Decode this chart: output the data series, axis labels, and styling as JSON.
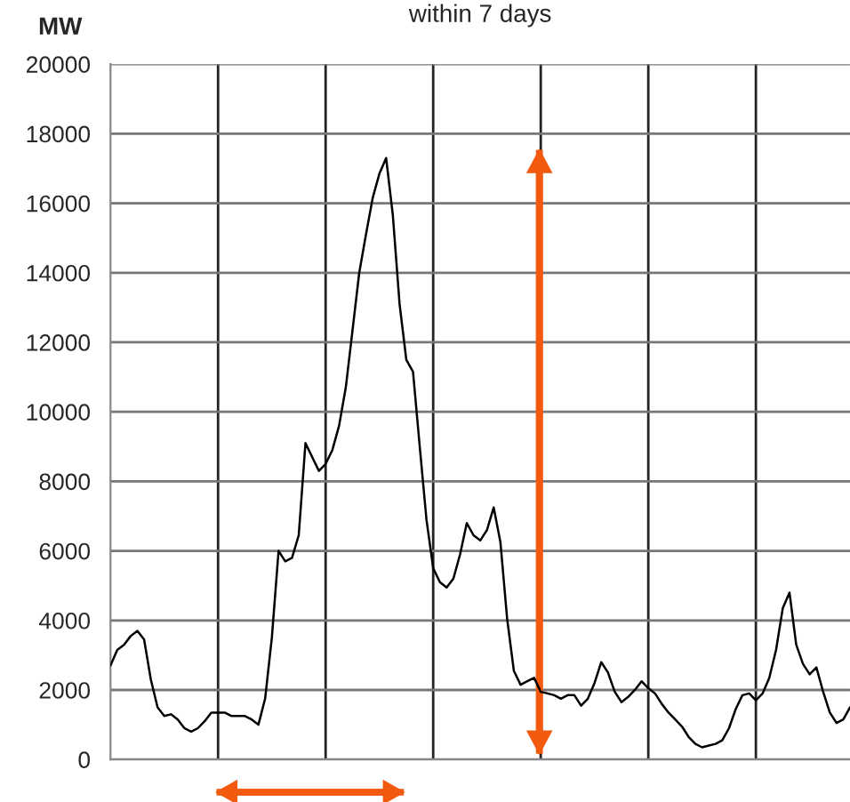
{
  "chart_data": {
    "type": "line",
    "title": "within 7 days",
    "ylabel": "MW",
    "categories": [
      null,
      null,
      null,
      null,
      null,
      null,
      null,
      null,
      null,
      null,
      null,
      null,
      null,
      null,
      null,
      null,
      null,
      null,
      null,
      null,
      null,
      null,
      null,
      null,
      null,
      null,
      null,
      null,
      null,
      null,
      null,
      null,
      null,
      null,
      null,
      null,
      null,
      null,
      null,
      null,
      null,
      null,
      null,
      null,
      null,
      null,
      null,
      null,
      null,
      null,
      null,
      null,
      null,
      null,
      null,
      null,
      null,
      null,
      null,
      null,
      null,
      null,
      null,
      null,
      null,
      null,
      null,
      null,
      null,
      null,
      null,
      null,
      null,
      null,
      null,
      null,
      null,
      null,
      null,
      null,
      null,
      null,
      null,
      null,
      null,
      null,
      null,
      null,
      null,
      null,
      null,
      null,
      null,
      null,
      null,
      null,
      null,
      null,
      null,
      null,
      null,
      null,
      null,
      null,
      null,
      null,
      null,
      null,
      null,
      null,
      null
    ],
    "series": [
      {
        "color": "#000000",
        "values": [
          2700,
          3150,
          3300,
          3550,
          3700,
          3450,
          2300,
          1500,
          1250,
          1300,
          1150,
          900,
          800,
          900,
          1100,
          1350,
          1350,
          1350,
          1250,
          1250,
          1250,
          1150,
          1000,
          1750,
          3500,
          6000,
          5700,
          5800,
          6450,
          9100,
          8700,
          8300,
          8500,
          8900,
          9600,
          10700,
          12350,
          14000,
          15100,
          16150,
          16850,
          17300,
          15650,
          13100,
          11500,
          11150,
          9000,
          6900,
          5500,
          5100,
          4950,
          5200,
          5900,
          6800,
          6450,
          6300,
          6600,
          7250,
          6250,
          4050,
          2550,
          2150,
          2250,
          2350,
          1950,
          1900,
          1850,
          1750,
          1850,
          1850,
          1550,
          1750,
          2200,
          2800,
          2500,
          1950,
          1650,
          1800,
          2000,
          2250,
          2050,
          1900,
          1600,
          1350,
          1150,
          950,
          650,
          450,
          350,
          400,
          450,
          550,
          900,
          1450,
          1850,
          1900,
          1700,
          1900,
          2350,
          3150,
          4350,
          4800,
          3300,
          2750,
          2450,
          2650,
          1950,
          1350,
          1050,
          1150,
          1500
        ]
      }
    ],
    "ylim": [
      0,
      20000
    ],
    "yticks": [
      0,
      2000,
      4000,
      6000,
      8000,
      10000,
      12000,
      14000,
      16000,
      18000,
      20000
    ],
    "tick_labels": "y",
    "grid": true,
    "legend": false,
    "marker": "none",
    "line_style": "solid"
  }
}
